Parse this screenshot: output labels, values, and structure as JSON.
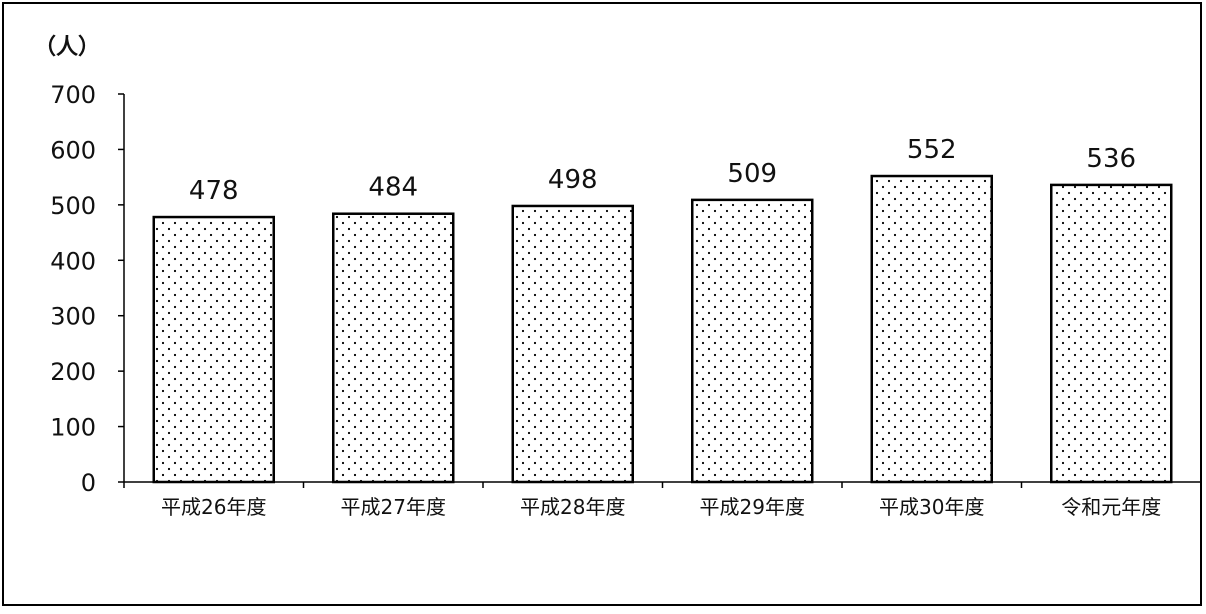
{
  "chart_data": {
    "type": "bar",
    "unit_label": "（人）",
    "categories": [
      "平成26年度",
      "平成27年度",
      "平成28年度",
      "平成29年度",
      "平成30年度",
      "令和元年度"
    ],
    "values": [
      478,
      484,
      498,
      509,
      552,
      536
    ],
    "y_ticks": [
      "0",
      "100",
      "200",
      "300",
      "400",
      "500",
      "600",
      "700"
    ],
    "ylim": [
      0,
      700
    ],
    "grid": false,
    "bar_fill": "dotted",
    "bar_color": "#ffffff",
    "bar_border_color": "#000000"
  }
}
